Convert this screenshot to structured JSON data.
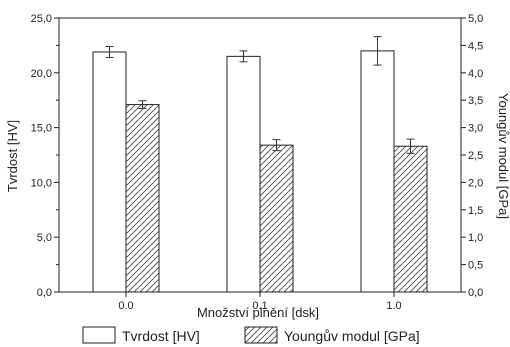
{
  "chart_data": {
    "type": "bar",
    "xlabel": "Množství plnění [dsk]",
    "ylabel": "Tvrdost [HV]",
    "y2label": "Youngův modul [GPa]",
    "categories": [
      "0.0",
      "0.1",
      "1.0"
    ],
    "ylim": [
      0,
      25
    ],
    "y2lim": [
      0,
      5
    ],
    "yticks": [
      "0,0",
      "5,0",
      "10,0",
      "15,0",
      "20,0",
      "25,0"
    ],
    "y2ticks": [
      "0,0",
      "0,5",
      "1,0",
      "1,5",
      "2,0",
      "2,5",
      "3,0",
      "3,5",
      "4,0",
      "4,5",
      "5,0"
    ],
    "series": [
      {
        "name": "Tvrdost [HV]",
        "axis": "left",
        "fill": "white",
        "values": [
          21.9,
          21.5,
          22.0
        ],
        "errors": [
          0.5,
          0.5,
          1.3
        ]
      },
      {
        "name": "Youngův modul [GPa]",
        "axis": "right",
        "fill": "hatched",
        "values": [
          3.42,
          2.68,
          2.66
        ],
        "errors": [
          0.07,
          0.1,
          0.13
        ]
      }
    ],
    "legend": "bottom"
  }
}
